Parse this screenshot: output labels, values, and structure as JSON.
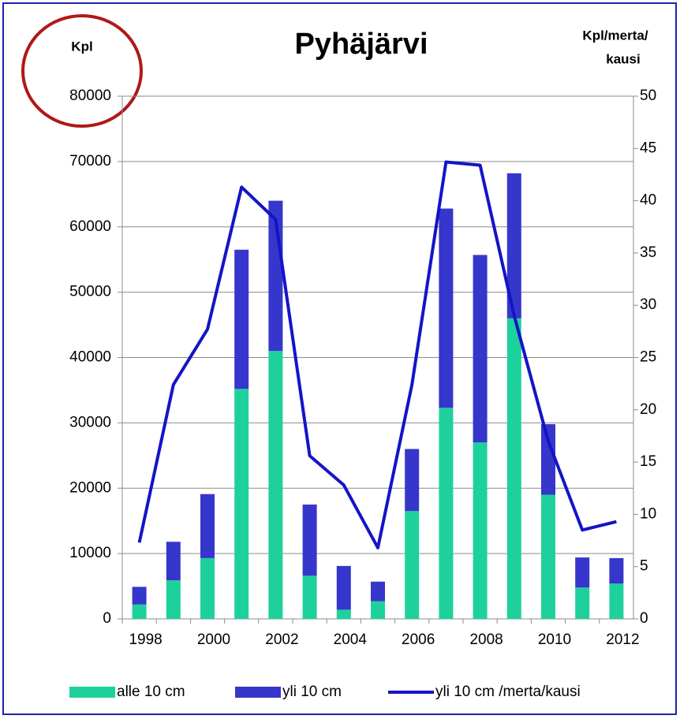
{
  "chart_data": {
    "type": "bar",
    "stacked": true,
    "title": "Pyhäjärvi",
    "y_label": "Kpl",
    "y2_label": [
      "Kpl/merta/",
      "kausi"
    ],
    "categories": [
      "1998",
      null,
      "2000",
      null,
      "2002",
      null,
      "2004",
      null,
      "2006",
      null,
      "2008",
      null,
      "2010",
      null,
      "2012"
    ],
    "series": [
      {
        "name": "alle 10 cm",
        "type": "bar",
        "color": "#1ed19c",
        "values": [
          2200,
          5900,
          9300,
          35200,
          41000,
          6600,
          1400,
          2700,
          16500,
          32300,
          27000,
          46000,
          19000,
          4800,
          5400
        ]
      },
      {
        "name": "yli 10 cm",
        "type": "bar",
        "color": "#3636cc",
        "values": [
          2700,
          5900,
          9800,
          21300,
          23000,
          10900,
          6700,
          3000,
          9500,
          30500,
          28700,
          22200,
          10800,
          4600,
          3900
        ]
      },
      {
        "name": "yli 10 cm /merta/kausi",
        "type": "line",
        "axis": "y2",
        "color": "#1414c8",
        "values": [
          7.3,
          22.4,
          27.7,
          41.3,
          38.2,
          15.6,
          12.8,
          6.8,
          22.4,
          43.7,
          43.4,
          29.0,
          17.0,
          8.5,
          9.3
        ]
      }
    ],
    "ylim": [
      0,
      80000
    ],
    "yticks": [
      0,
      10000,
      20000,
      30000,
      40000,
      50000,
      60000,
      70000,
      80000
    ],
    "y2lim": [
      0,
      50
    ],
    "y2ticks": [
      0,
      5,
      10,
      15,
      20,
      25,
      30,
      35,
      40,
      45,
      50
    ],
    "grid": true,
    "legend": "bottom"
  }
}
